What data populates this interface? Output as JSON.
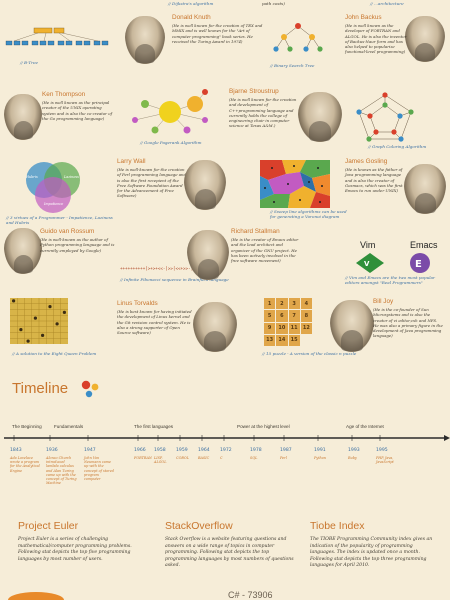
{
  "top_fragment": {
    "caption_a": "// Dijkstra's algorithm",
    "caption_b": "path costs)",
    "caption_c": "// ...architecture"
  },
  "rows": [
    {
      "left_caption": "// B-Tree",
      "person": {
        "name": "Donald Knuth",
        "bio": "(He is well known for the creation of TEX and MMIX and is well known for the \"Art of computer programming\" book series. He received the Turing Award in 1974)"
      },
      "right_caption": "// Binary Search Tree",
      "person2": {
        "name": "John Backus",
        "bio": "(He is well known as the developer of FORTRAN and ALGOL. He is also the inventor of Backus-Naur form and has also helped to popularize functional-level programming)"
      }
    },
    {
      "person": {
        "name": "Ken Thompson",
        "bio": "(He is well known as the principal creator of the UNIX operating system and is also the co-creator of the Go programming language)"
      },
      "mid_caption": "// Google Pagerank Algorithm",
      "person2": {
        "name": "Bjarne Stroustrup",
        "bio": "(He is well known for the creation and development of C++programming language and currently holds the college of engineering chair in computer science at Texas A&M.)"
      },
      "right_caption": "// Graph Coloring Algorithm"
    },
    {
      "left_caption": "// 3 virtues of a Programmer - Impatience, Laziness and Hubris",
      "venn_labels": [
        "Hubris",
        "Laziness",
        "Impatience"
      ],
      "person": {
        "name": "Larry Wall",
        "bio": "(He is well-known for the creation of Perl programming language and is also the first recepient of the Free Software Foundation Award for the Advancement of Free Software)"
      },
      "mid_caption": "// Sweep line algorithms can be used for generating a Voronoi diagram",
      "person2": {
        "name": "James Gosling",
        "bio": "(He is known as the father of Java programming language and is also the creator of Gosmacs, which was the first Emacs to run under UNIX)"
      }
    },
    {
      "person": {
        "name": "Guido van Rossum",
        "bio": "(He is well-known as the author of Python programming language and is currently employed by Google)"
      },
      "mid_caption": "// Infinite Fibonacci sequence in Brainfuck language",
      "person2": {
        "name": "Richard Stallman",
        "bio": "(He is the creator of Emacs editor and the lead architect and organizer of the GNU project. He has been actively involved in the free software movement)"
      },
      "editors": [
        "Vim",
        "Emacs"
      ],
      "right_caption": "// Vim and Emacs are the two most popular editors amongst \"Real Programmers\""
    },
    {
      "left_caption": "// A solution to the Eight Queen Problem",
      "person": {
        "name": "Linus Torvalds",
        "bio": "(He is best known for having initiated the development of Linux kernel and the Git revision control system. He is also a strong supporter of Open Source software)"
      },
      "mid_caption": "// 15 puzzle - A version of the classic n puzzle",
      "puzzle": [
        "1",
        "2",
        "3",
        "4",
        "5",
        "6",
        "7",
        "8",
        "9",
        "10",
        "11",
        "12",
        "13",
        "14",
        "15",
        ""
      ],
      "person2": {
        "name": "Bill Joy",
        "bio": "(He is the co-founder of Sun Microsystems and is also the creator of vi editor,csh and NFS. He was also a primary figure in the development of Java programming language)"
      }
    }
  ],
  "timeline": {
    "title": "Timeline",
    "eras": [
      "The Beginning",
      "Fundamentals",
      "The first languages",
      "Power at the highest level",
      "Age of the Internet"
    ],
    "years": [
      "1843",
      "1936",
      "1947",
      "1966",
      "1958",
      "1959",
      "1964",
      "1972",
      "1978",
      "1987",
      "1991",
      "1993",
      "1995"
    ],
    "events": [
      "Ada Lovelace wrote a program for the Analytical Engine",
      "Alonzo Church introduced lambda calculus and Alan Turing came up with the concept of Turing Machine",
      "John Von Neumann came up with the concept of stored program computer",
      "FORTRAN",
      "LISP, ALGOL",
      "COBOL",
      "BASIC",
      "C",
      "SQL",
      "Perl",
      "Python",
      "Ruby",
      "PHP, Java, JavaScript"
    ]
  },
  "sections": [
    {
      "title": "Project Euler",
      "text": "Project Euler is a series of challenging mathematical/computer programming problems. Following stat depicts the top five programming languages by most number of users."
    },
    {
      "title": "StackOverflow",
      "text": "Stack Overflow is a website featuring questions and answers on a wide range of topics in computer programming. Following stat depicts the top programming languages by most numbers of questions asked.",
      "stat": "C# - 73906"
    },
    {
      "title": "Tiobe Index",
      "text": "The TIOBE Programming Community index gives an indication of the popularity of programming languages. The index is updated once a month. Following stat depicts the top three programming languages for April 2010."
    }
  ],
  "colors": {
    "accent": "#c8762e",
    "caption": "#3a6fa3",
    "background": "#f6edd8",
    "red": "#d9402b",
    "yellow": "#f0b12e",
    "blue": "#3a8dc7"
  }
}
